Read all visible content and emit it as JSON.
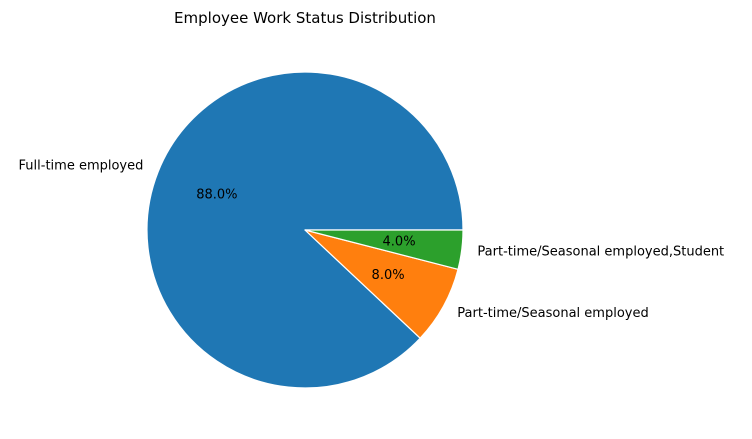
{
  "chart_data": {
    "type": "pie",
    "title": "Employee Work Status Distribution",
    "categories": [
      "Full-time employed",
      "Part-time/Seasonal employed",
      "Part-time/Seasonal employed,Student"
    ],
    "values": [
      88.0,
      8.0,
      4.0
    ],
    "value_labels": [
      "88.0%",
      "8.0%",
      "4.0%"
    ],
    "colors": [
      "#1f77b4",
      "#ff7f0e",
      "#2ca02c"
    ],
    "slice_edge_color": "#ffffff",
    "start_angle_deg": 0,
    "direction": "counterclockwise",
    "legend": "none"
  }
}
